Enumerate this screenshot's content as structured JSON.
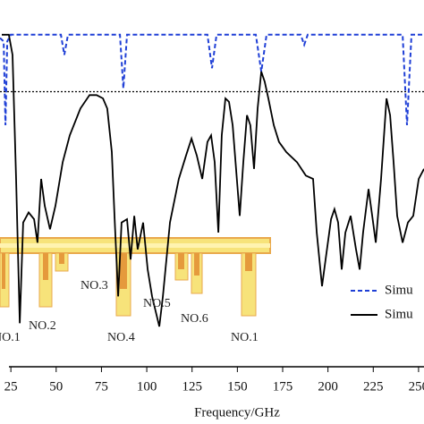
{
  "chart_data": {
    "type": "line",
    "x_label": "Frequency/GHz",
    "xlim": [
      19,
      253
    ],
    "ylim": [
      0,
      100
    ],
    "xticks": [
      25,
      50,
      75,
      100,
      125,
      150,
      175,
      200,
      225,
      250
    ],
    "threshold": 82,
    "legend": "lower right",
    "series": [
      {
        "name": "Simu",
        "color": "#1f3fd6",
        "dash": true,
        "x": [
          19.0,
          21.0,
          22.0,
          23.0,
          24.9,
          52.6,
          54.5,
          56.5,
          85.2,
          87.1,
          89.1,
          133.5,
          136.0,
          138.5,
          160.2,
          163.2,
          166.1,
          184.9,
          186.9,
          188.8,
          241.2,
          243.6,
          246.1,
          253.0
        ],
        "values": [
          98,
          97,
          72,
          97,
          99,
          99,
          93,
          99,
          99,
          83,
          99,
          99,
          89,
          99,
          99,
          88,
          99,
          99,
          96,
          99,
          99,
          72,
          99,
          99
        ]
      },
      {
        "name": "Simu",
        "color": "#000000",
        "dash": false,
        "x": [
          20.0,
          23.9,
          25.9,
          27.9,
          29.9,
          31.8,
          34.8,
          37.8,
          39.7,
          41.7,
          43.7,
          46.6,
          49.6,
          53.6,
          57.5,
          63.4,
          68.4,
          72.3,
          75.8,
          78.2,
          80.7,
          82.2,
          84.2,
          86.1,
          89.1,
          91.1,
          93.1,
          95.0,
          98.0,
          100.5,
          102.9,
          106.9,
          108.9,
          112.8,
          117.7,
          121.7,
          124.7,
          127.6,
          130.6,
          133.5,
          135.5,
          137.5,
          139.5,
          141.4,
          143.4,
          145.4,
          147.4,
          149.3,
          151.3,
          153.3,
          155.3,
          157.2,
          159.2,
          161.2,
          163.2,
          165.1,
          167.1,
          170.1,
          173.0,
          177.0,
          182.9,
          187.8,
          191.8,
          193.8,
          196.7,
          198.7,
          201.7,
          203.6,
          205.6,
          207.6,
          209.6,
          212.5,
          215.5,
          217.5,
          219.4,
          222.4,
          224.4,
          226.4,
          229.3,
          232.3,
          234.3,
          236.2,
          238.2,
          241.2,
          244.1,
          247.1,
          250.1,
          253.0
        ],
        "values": [
          99,
          99,
          93,
          56,
          13,
          43,
          46,
          44,
          37,
          56,
          48,
          41,
          48,
          61,
          69,
          77,
          81,
          81,
          80,
          77,
          64,
          45,
          21,
          43,
          44,
          32,
          45,
          35,
          43,
          29,
          21,
          12,
          21,
          43,
          56,
          63,
          68,
          63,
          56,
          67,
          69,
          61,
          40,
          69,
          80,
          79,
          72,
          59,
          45,
          61,
          75,
          72,
          59,
          77,
          88,
          85,
          80,
          72,
          67,
          64,
          61,
          57,
          56,
          40,
          24,
          32,
          44,
          47,
          43,
          29,
          40,
          45,
          35,
          29,
          40,
          53,
          45,
          37,
          56,
          80,
          75,
          61,
          45,
          37,
          43,
          45,
          56,
          59
        ]
      }
    ],
    "annotations": [
      "NO.1",
      "NO.2",
      "NO.3",
      "NO.4",
      "NO.5",
      "NO.6",
      "NO.1"
    ]
  }
}
